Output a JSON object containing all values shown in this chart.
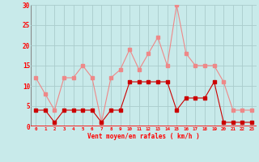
{
  "x": [
    0,
    1,
    2,
    3,
    4,
    5,
    6,
    7,
    8,
    9,
    10,
    11,
    12,
    13,
    14,
    15,
    16,
    17,
    18,
    19,
    20,
    21,
    22,
    23
  ],
  "wind_avg": [
    4,
    4,
    1,
    4,
    4,
    4,
    4,
    1,
    4,
    4,
    11,
    11,
    11,
    11,
    11,
    4,
    7,
    7,
    7,
    11,
    1,
    1,
    1,
    1
  ],
  "wind_gust": [
    12,
    8,
    4,
    12,
    12,
    15,
    12,
    1,
    12,
    14,
    19,
    14,
    18,
    22,
    15,
    30,
    18,
    15,
    15,
    15,
    11,
    4,
    4,
    4
  ],
  "xlabel": "Vent moyen/en rafales ( km/h )",
  "ylim": [
    0,
    30
  ],
  "yticks": [
    0,
    5,
    10,
    15,
    20,
    25,
    30
  ],
  "bg_color": "#c8eaea",
  "grid_color": "#aacccc",
  "avg_color": "#cc0000",
  "gust_color": "#ee8888",
  "marker_size": 2.5,
  "line_width": 0.8
}
